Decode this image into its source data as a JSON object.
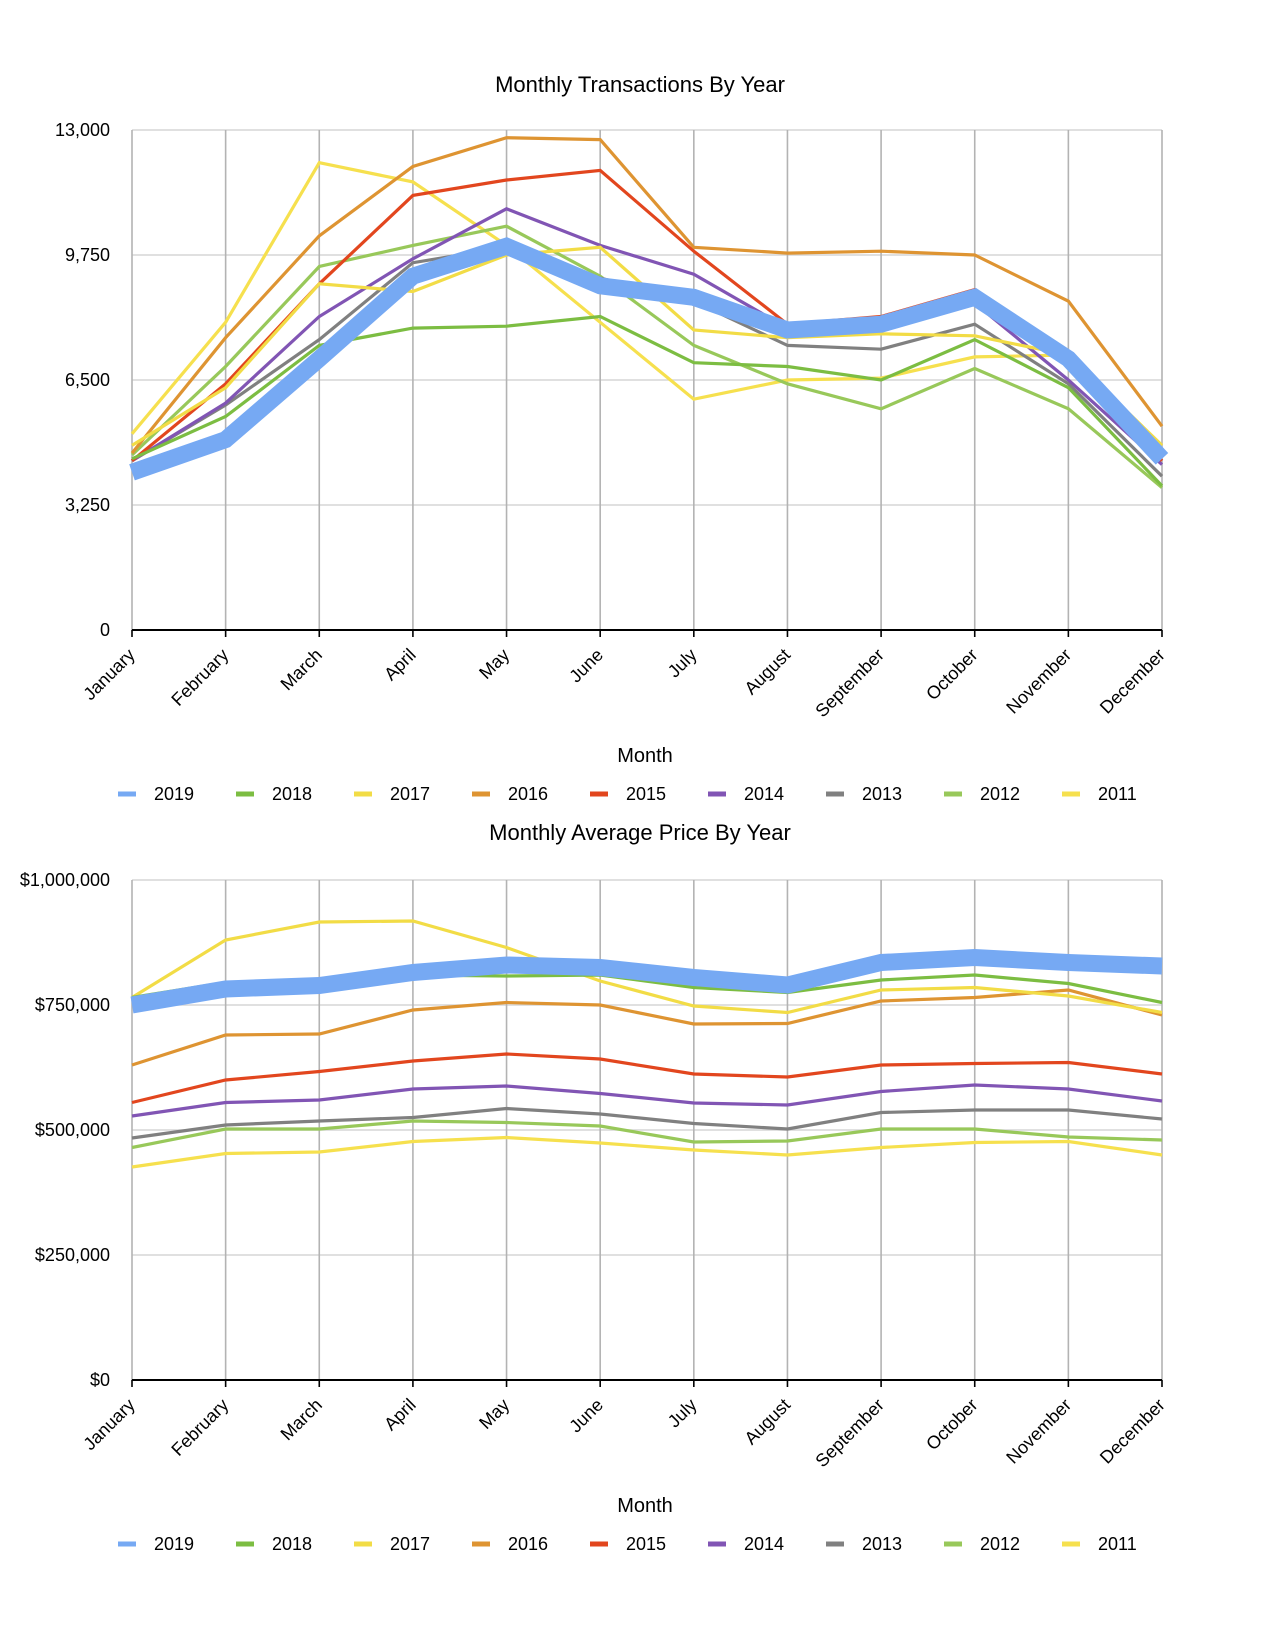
{
  "chart_data": [
    {
      "type": "line",
      "title": "Monthly Transactions By Year",
      "xlabel": "Month",
      "ylabel": "",
      "ylim": [
        0,
        13000
      ],
      "yticks": [
        "0",
        "3,250",
        "6,500",
        "9,750",
        "13,000"
      ],
      "yticks_values": [
        0,
        3250,
        6500,
        9750,
        13000
      ],
      "categories": [
        "January",
        "February",
        "March",
        "April",
        "May",
        "June",
        "July",
        "August",
        "September",
        "October",
        "November",
        "December"
      ],
      "grid": "vertical and horizontal",
      "legend_position": "bottom",
      "series": [
        {
          "name": "2019",
          "color": "#76a9f3",
          "highlight": true,
          "values": [
            4100,
            4950,
            7050,
            9200,
            9980,
            8950,
            8650,
            7800,
            7950,
            8650,
            7050,
            4450
          ]
        },
        {
          "name": "2018",
          "color": "#7cbd42",
          "values": [
            4450,
            5550,
            7400,
            7850,
            7900,
            8150,
            6950,
            6850,
            6500,
            7550,
            6300,
            3750
          ]
        },
        {
          "name": "2017",
          "color": "#f2dc46",
          "values": [
            4800,
            6300,
            9000,
            8800,
            9750,
            9950,
            7800,
            7600,
            7700,
            7650,
            7150,
            4800
          ]
        },
        {
          "name": "2016",
          "color": "#de9432",
          "values": [
            4600,
            7600,
            10250,
            12050,
            12800,
            12750,
            9950,
            9800,
            9850,
            9750,
            8550,
            5300
          ]
        },
        {
          "name": "2015",
          "color": "#e2461e",
          "values": [
            4400,
            6400,
            9000,
            11300,
            11700,
            11950,
            9850,
            7950,
            8150,
            8850,
            7200,
            4400
          ]
        },
        {
          "name": "2014",
          "color": "#8155b4",
          "values": [
            4400,
            5900,
            8150,
            9650,
            10950,
            10000,
            9250,
            7850,
            8000,
            8500,
            6500,
            4300
          ]
        },
        {
          "name": "2013",
          "color": "#808080",
          "values": [
            4400,
            5850,
            7550,
            9550,
            9950,
            9150,
            8550,
            7400,
            7300,
            7950,
            6400,
            4000
          ]
        },
        {
          "name": "2012",
          "color": "#98c85a",
          "values": [
            4550,
            6850,
            9450,
            10000,
            10500,
            9200,
            7400,
            6400,
            5750,
            6800,
            5750,
            3700
          ]
        },
        {
          "name": "2011",
          "color": "#f6e04e",
          "values": [
            5100,
            8000,
            12150,
            11650,
            10000,
            8000,
            6000,
            6500,
            6550,
            7100,
            7150,
            4800
          ]
        }
      ]
    },
    {
      "type": "line",
      "title": "Monthly Average Price By Year",
      "xlabel": "Month",
      "ylabel": "",
      "ylim": [
        0,
        1000000
      ],
      "yticks": [
        "$0",
        "$250,000",
        "$500,000",
        "$750,000",
        "$1,000,000"
      ],
      "yticks_values": [
        0,
        250000,
        500000,
        750000,
        1000000
      ],
      "categories": [
        "January",
        "February",
        "March",
        "April",
        "May",
        "June",
        "July",
        "August",
        "September",
        "October",
        "November",
        "December"
      ],
      "grid": "vertical and horizontal",
      "legend_position": "bottom",
      "series": [
        {
          "name": "2019",
          "color": "#76a9f3",
          "highlight": true,
          "values": [
            750000,
            782000,
            789000,
            815000,
            830000,
            825000,
            805000,
            790000,
            835000,
            845000,
            835000,
            828000
          ]
        },
        {
          "name": "2018",
          "color": "#7cbd42",
          "values": [
            765000,
            795000,
            800000,
            810000,
            808000,
            810000,
            785000,
            775000,
            800000,
            810000,
            793000,
            755000
          ]
        },
        {
          "name": "2017",
          "color": "#f2dc46",
          "values": [
            765000,
            880000,
            916000,
            918000,
            865000,
            798000,
            748000,
            735000,
            780000,
            785000,
            768000,
            735000
          ]
        },
        {
          "name": "2016",
          "color": "#de9432",
          "values": [
            630000,
            690000,
            692000,
            740000,
            755000,
            750000,
            712000,
            713000,
            758000,
            765000,
            780000,
            730000
          ]
        },
        {
          "name": "2015",
          "color": "#e2461e",
          "values": [
            555000,
            600000,
            617000,
            638000,
            652000,
            642000,
            612000,
            606000,
            630000,
            633000,
            635000,
            612000
          ]
        },
        {
          "name": "2014",
          "color": "#8155b4",
          "values": [
            528000,
            555000,
            560000,
            582000,
            588000,
            573000,
            554000,
            550000,
            577000,
            590000,
            582000,
            558000
          ]
        },
        {
          "name": "2013",
          "color": "#808080",
          "values": [
            484000,
            510000,
            518000,
            525000,
            543000,
            532000,
            513000,
            502000,
            535000,
            540000,
            540000,
            522000
          ]
        },
        {
          "name": "2012",
          "color": "#98c85a",
          "values": [
            465000,
            502000,
            502000,
            518000,
            515000,
            508000,
            476000,
            478000,
            502000,
            502000,
            486000,
            480000
          ]
        },
        {
          "name": "2011",
          "color": "#f6e04e",
          "values": [
            426000,
            453000,
            456000,
            477000,
            485000,
            474000,
            460000,
            450000,
            465000,
            475000,
            477000,
            450000
          ]
        }
      ]
    }
  ]
}
